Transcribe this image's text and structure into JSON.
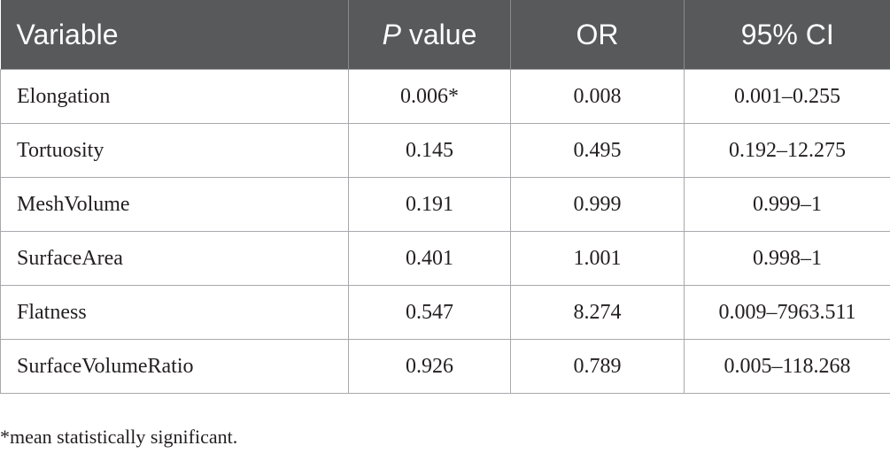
{
  "table": {
    "headers": {
      "variable": "Variable",
      "p_value_italic": "P",
      "p_value_rest": " value",
      "or": "OR",
      "ci": "95% CI"
    },
    "rows": [
      {
        "variable": "Elongation",
        "p_value": "0.006*",
        "or": "0.008",
        "ci": "0.001–0.255"
      },
      {
        "variable": "Tortuosity",
        "p_value": "0.145",
        "or": "0.495",
        "ci": "0.192–12.275"
      },
      {
        "variable": "MeshVolume",
        "p_value": "0.191",
        "or": "0.999",
        "ci": "0.999–1"
      },
      {
        "variable": "SurfaceArea",
        "p_value": "0.401",
        "or": "1.001",
        "ci": "0.998–1"
      },
      {
        "variable": "Flatness",
        "p_value": "0.547",
        "or": "8.274",
        "ci": "0.009–7963.511"
      },
      {
        "variable": "SurfaceVolumeRatio",
        "p_value": "0.926",
        "or": "0.789",
        "ci": "0.005–118.268"
      }
    ]
  },
  "footnote": "*mean statistically significant.",
  "colors": {
    "header_background": "#58595b",
    "header_text": "#ffffff",
    "grid_line": "#a7a9ac",
    "body_text": "#231f20"
  }
}
